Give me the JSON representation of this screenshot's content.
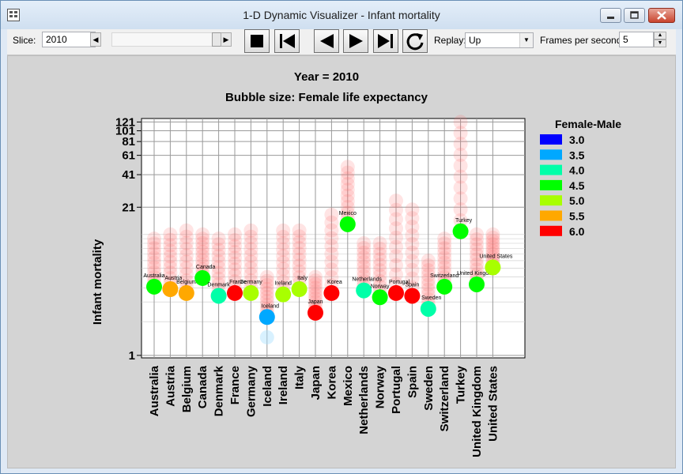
{
  "window": {
    "title": "1-D Dynamic Visualizer - Infant mortality"
  },
  "toolbar": {
    "slice_label": "Slice:",
    "slice_value": "2010",
    "replay_label": "Replay:",
    "replay_value": "Up",
    "fps_label": "Frames per second:",
    "fps_value": "5",
    "buttons": [
      "stop",
      "go-to-start",
      "step-back",
      "step-forward",
      "go-to-end",
      "replay"
    ]
  },
  "chart_data": {
    "type": "scatter",
    "title": "Year = 2010",
    "subtitle": "Bubble size: Female life expectancy",
    "ylabel": "Infant mortality",
    "y_scale": "log",
    "y_ticks": [
      "1",
      "21",
      "41",
      "61",
      "81",
      "101",
      "121"
    ],
    "y_tick_values": [
      1,
      21,
      41,
      61,
      81,
      101,
      121
    ],
    "legend": {
      "title": "Female-Male",
      "placement": "right",
      "items": [
        {
          "label": "3.0",
          "color": "#0000ff"
        },
        {
          "label": "3.5",
          "color": "#00a8ff"
        },
        {
          "label": "4.0",
          "color": "#00ffa8"
        },
        {
          "label": "4.5",
          "color": "#00ff00"
        },
        {
          "label": "5.0",
          "color": "#a8ff00"
        },
        {
          "label": "5.5",
          "color": "#ffa800"
        },
        {
          "label": "6.0",
          "color": "#ff0000"
        }
      ]
    },
    "categories": [
      "Australia",
      "Austria",
      "Belgium",
      "Canada",
      "Denmark",
      "France",
      "Germany",
      "Iceland",
      "Ireland",
      "Italy",
      "Japan",
      "Korea",
      "Mexico",
      "Netherlands",
      "Norway",
      "Portugal",
      "Spain",
      "Sweden",
      "Switzerland",
      "Turkey",
      "United Kingdom",
      "United States"
    ],
    "points": [
      {
        "country": "Australia",
        "y": 4.1,
        "color": "#00ff00"
      },
      {
        "country": "Austria",
        "y": 3.9,
        "color": "#ffa800"
      },
      {
        "country": "Belgium",
        "y": 3.6,
        "color": "#ffa800"
      },
      {
        "country": "Canada",
        "y": 4.9,
        "color": "#00ff00"
      },
      {
        "country": "Denmark",
        "y": 3.4,
        "color": "#00ffa8"
      },
      {
        "country": "France",
        "y": 3.6,
        "color": "#ff0000"
      },
      {
        "country": "Germany",
        "y": 3.6,
        "color": "#a8ff00"
      },
      {
        "country": "Iceland",
        "y": 2.2,
        "color": "#00a8ff"
      },
      {
        "country": "Ireland",
        "y": 3.5,
        "color": "#a8ff00"
      },
      {
        "country": "Italy",
        "y": 3.9,
        "color": "#a8ff00"
      },
      {
        "country": "Japan",
        "y": 2.4,
        "color": "#ff0000"
      },
      {
        "country": "Korea",
        "y": 3.6,
        "color": "#ff0000"
      },
      {
        "country": "Mexico",
        "y": 14.8,
        "color": "#00ff00"
      },
      {
        "country": "Netherlands",
        "y": 3.8,
        "color": "#00ffa8"
      },
      {
        "country": "Norway",
        "y": 3.3,
        "color": "#00ff00"
      },
      {
        "country": "Portugal",
        "y": 3.6,
        "color": "#ff0000"
      },
      {
        "country": "Spain",
        "y": 3.4,
        "color": "#ff0000"
      },
      {
        "country": "Sweden",
        "y": 2.6,
        "color": "#00ffa8"
      },
      {
        "country": "Switzerland",
        "y": 4.1,
        "color": "#00ff00"
      },
      {
        "country": "Turkey",
        "y": 12.8,
        "color": "#00ff00"
      },
      {
        "country": "United Kingdom",
        "y": 4.3,
        "color": "#00ff00"
      },
      {
        "country": "United States",
        "y": 6.1,
        "color": "#a8ff00"
      }
    ]
  }
}
